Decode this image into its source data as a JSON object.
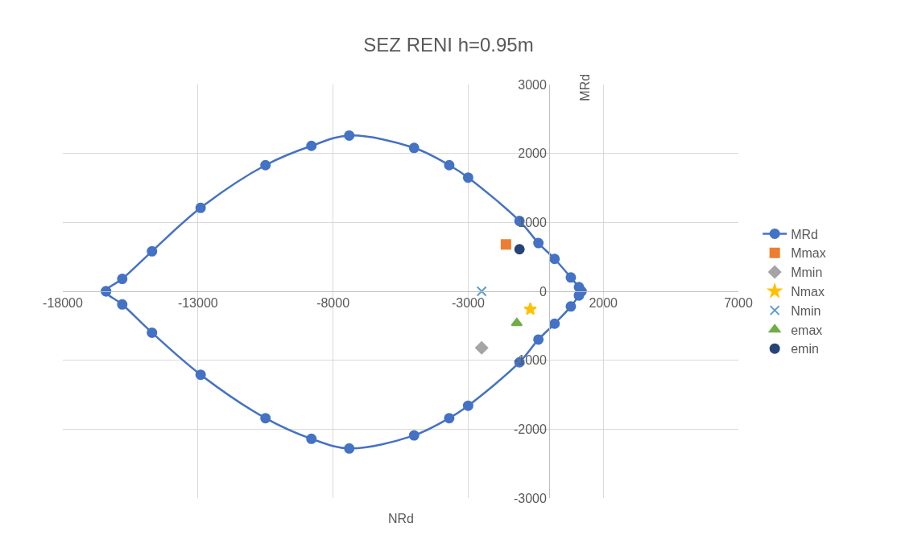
{
  "chart_data": {
    "type": "scatter",
    "title": "SEZ RENI h=0.95m",
    "xlabel": "NRd",
    "ylabel": "MRd",
    "xlim": [
      -18000,
      7000
    ],
    "xticks": [
      -18000,
      -13000,
      -8000,
      -3000,
      2000,
      7000
    ],
    "ylim": [
      -3000,
      3000
    ],
    "yticks": [
      -3000,
      -2000,
      -1000,
      0,
      1000,
      2000,
      3000
    ],
    "grid": true,
    "legend": "right",
    "series": [
      {
        "name": "MRd",
        "line_style": "solid",
        "color": "#4472c4",
        "marker": "circle",
        "x": [
          -16400,
          -15800,
          -14700,
          -12900,
          -10500,
          -8800,
          -7400,
          -5000,
          -3700,
          -3000,
          -1100,
          -400,
          200,
          800,
          1100,
          1200,
          1100,
          800,
          200,
          -400,
          -1100,
          -3000,
          -3700,
          -5000,
          -7400,
          -8800,
          -10500,
          -12900,
          -14700,
          -15800,
          -16400
        ],
        "values": [
          0,
          180,
          580,
          1210,
          1830,
          2110,
          2260,
          2080,
          1830,
          1650,
          1020,
          700,
          470,
          200,
          60,
          0,
          -60,
          -220,
          -470,
          -700,
          -1030,
          -1660,
          -1840,
          -2090,
          -2280,
          -2140,
          -1840,
          -1210,
          -600,
          -190,
          0
        ]
      },
      {
        "name": "Mmax",
        "color": "#ed7d31",
        "marker": "square",
        "x": [
          -1600
        ],
        "values": [
          680
        ]
      },
      {
        "name": "Mmin",
        "color": "#a5a5a5",
        "marker": "diamond",
        "x": [
          -2500
        ],
        "values": [
          -820
        ]
      },
      {
        "name": "Nmax",
        "color": "#ffc000",
        "marker": "star",
        "x": [
          -700
        ],
        "values": [
          -260
        ]
      },
      {
        "name": "Nmin",
        "color": "#5b9bd5",
        "marker": "cross",
        "x": [
          -2500
        ],
        "values": [
          0
        ]
      },
      {
        "name": "emax",
        "color": "#70ad47",
        "marker": "triangle",
        "x": [
          -1200
        ],
        "values": [
          -460
        ]
      },
      {
        "name": "emin",
        "color": "#264478",
        "marker": "circle",
        "x": [
          -1100
        ],
        "values": [
          610
        ]
      }
    ]
  }
}
